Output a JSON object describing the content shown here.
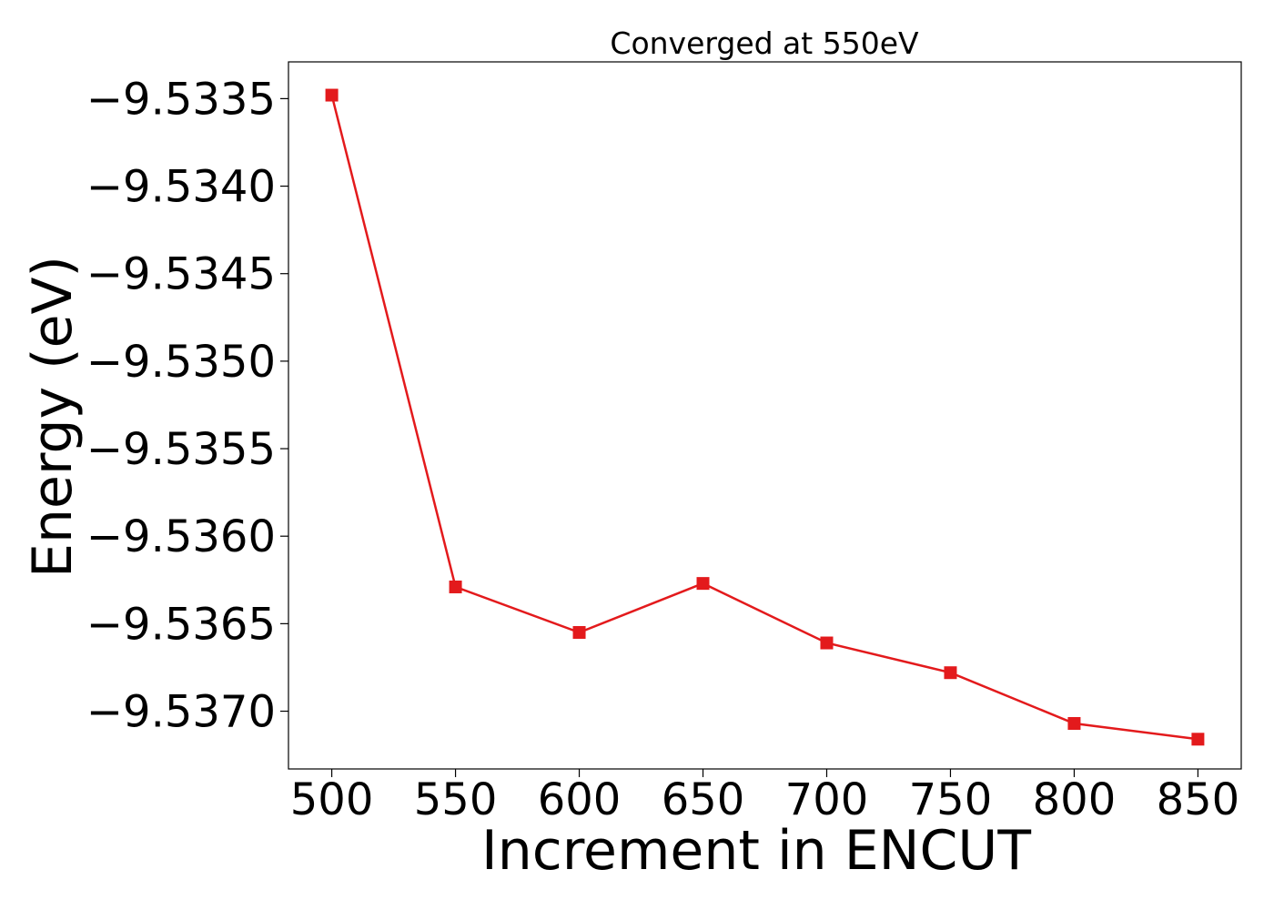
{
  "chart_data": {
    "type": "line",
    "title": "Converged at 550eV",
    "xlabel": "Increment in ENCUT",
    "ylabel": "Energy (eV)",
    "x": [
      500,
      550,
      600,
      650,
      700,
      750,
      800,
      850
    ],
    "series": [
      {
        "values": [
          -9.53348,
          -9.53629,
          -9.53655,
          -9.53627,
          -9.53661,
          -9.53678,
          -9.53707,
          -9.53716
        ],
        "color": "#e31a1c",
        "marker": "square"
      }
    ],
    "xticks": [
      500,
      550,
      600,
      650,
      700,
      750,
      800,
      850
    ],
    "xtick_labels": [
      "500",
      "550",
      "600",
      "650",
      "700",
      "750",
      "800",
      "850"
    ],
    "yticks": [
      -9.5335,
      -9.534,
      -9.5345,
      -9.535,
      -9.5355,
      -9.536,
      -9.5365,
      -9.537
    ],
    "ytick_labels": [
      "−9.5335",
      "−9.5340",
      "−9.5345",
      "−9.5350",
      "−9.5355",
      "−9.5360",
      "−9.5365",
      "−9.5370"
    ],
    "xlim": [
      482.5,
      867.5
    ],
    "ylim": [
      -9.53733,
      -9.53329
    ],
    "grid": false,
    "legend": "none"
  }
}
